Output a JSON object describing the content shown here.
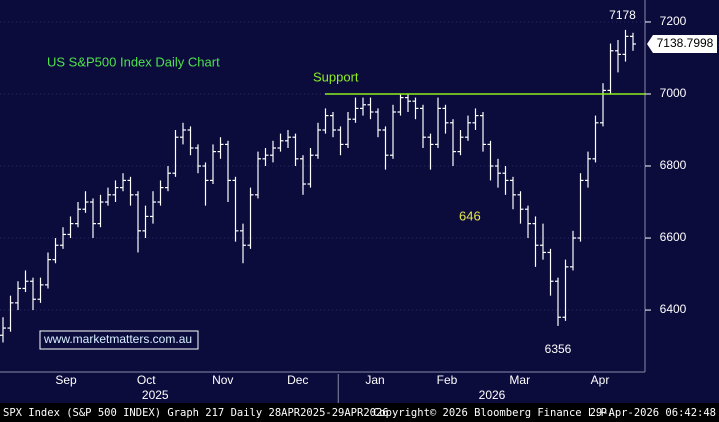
{
  "chart_data": {
    "type": "ohlc",
    "title": "US S&P500 Index Daily Chart",
    "url": "www.marketmatters.com.au",
    "color": "#ffffff",
    "support_level": 7000,
    "support_label": "Support",
    "support_color": "#8cf01e",
    "annotation": "646",
    "annotation_color": "#e6e64a",
    "ylim": [
      6228,
      7261
    ],
    "yticks": [
      6400,
      6600,
      6800,
      7000,
      7200
    ],
    "xlim": [
      -0.4,
      85.6
    ],
    "xticks": [
      {
        "value": 8.4,
        "label": "Sep"
      },
      {
        "value": 19.1,
        "label": "Oct"
      },
      {
        "value": 29.3,
        "label": "Nov"
      },
      {
        "value": 39.3,
        "label": "Dec"
      },
      {
        "value": 49.6,
        "label": "Jan"
      },
      {
        "value": 59.2,
        "label": "Feb"
      },
      {
        "value": 68.9,
        "label": "Mar"
      },
      {
        "value": 79.6,
        "label": "Apr"
      }
    ],
    "years": [
      {
        "value": 20.3,
        "label": "2025"
      },
      {
        "value": 65.2,
        "label": "2026"
      }
    ],
    "year_break": 44.7,
    "bars": [
      [
        6330,
        6380,
        6310,
        6350
      ],
      [
        6350,
        6440,
        6340,
        6420
      ],
      [
        6420,
        6480,
        6400,
        6460
      ],
      [
        6460,
        6510,
        6450,
        6480
      ],
      [
        6480,
        6490,
        6400,
        6430
      ],
      [
        6430,
        6490,
        6420,
        6470
      ],
      [
        6470,
        6560,
        6460,
        6540
      ],
      [
        6540,
        6600,
        6530,
        6580
      ],
      [
        6580,
        6630,
        6570,
        6610
      ],
      [
        6610,
        6660,
        6600,
        6640
      ],
      [
        6640,
        6700,
        6630,
        6680
      ],
      [
        6680,
        6730,
        6670,
        6700
      ],
      [
        6700,
        6710,
        6600,
        6640
      ],
      [
        6640,
        6720,
        6630,
        6700
      ],
      [
        6700,
        6740,
        6690,
        6720
      ],
      [
        6720,
        6760,
        6700,
        6740
      ],
      [
        6740,
        6780,
        6730,
        6760
      ],
      [
        6760,
        6770,
        6690,
        6720
      ],
      [
        6720,
        6730,
        6560,
        6620
      ],
      [
        6620,
        6690,
        6600,
        6660
      ],
      [
        6660,
        6730,
        6640,
        6700
      ],
      [
        6700,
        6760,
        6690,
        6740
      ],
      [
        6740,
        6800,
        6730,
        6780
      ],
      [
        6780,
        6900,
        6770,
        6880
      ],
      [
        6880,
        6920,
        6860,
        6900
      ],
      [
        6900,
        6910,
        6830,
        6850
      ],
      [
        6850,
        6860,
        6780,
        6800
      ],
      [
        6800,
        6810,
        6690,
        6760
      ],
      [
        6760,
        6860,
        6750,
        6840
      ],
      [
        6840,
        6880,
        6820,
        6860
      ],
      [
        6860,
        6870,
        6700,
        6760
      ],
      [
        6760,
        6770,
        6590,
        6620
      ],
      [
        6620,
        6640,
        6530,
        6580
      ],
      [
        6580,
        6740,
        6570,
        6720
      ],
      [
        6720,
        6840,
        6710,
        6820
      ],
      [
        6820,
        6850,
        6800,
        6830
      ],
      [
        6830,
        6870,
        6810,
        6850
      ],
      [
        6850,
        6890,
        6840,
        6870
      ],
      [
        6870,
        6900,
        6850,
        6880
      ],
      [
        6880,
        6890,
        6800,
        6820
      ],
      [
        6820,
        6830,
        6720,
        6750
      ],
      [
        6750,
        6850,
        6740,
        6830
      ],
      [
        6830,
        6920,
        6820,
        6900
      ],
      [
        6900,
        6960,
        6890,
        6940
      ],
      [
        6940,
        6950,
        6880,
        6900
      ],
      [
        6900,
        6910,
        6830,
        6860
      ],
      [
        6860,
        6950,
        6850,
        6930
      ],
      [
        6930,
        6990,
        6920,
        6960
      ],
      [
        6960,
        6990,
        6940,
        6970
      ],
      [
        6970,
        6990,
        6930,
        6950
      ],
      [
        6950,
        6960,
        6880,
        6900
      ],
      [
        6900,
        6910,
        6790,
        6830
      ],
      [
        6830,
        6970,
        6820,
        6950
      ],
      [
        6950,
        7000,
        6940,
        6990
      ],
      [
        6990,
        7000,
        6950,
        6980
      ],
      [
        6980,
        6990,
        6930,
        6960
      ],
      [
        6960,
        6970,
        6850,
        6880
      ],
      [
        6880,
        6890,
        6790,
        6860
      ],
      [
        6860,
        6990,
        6850,
        6960
      ],
      [
        6960,
        6970,
        6890,
        6920
      ],
      [
        6920,
        6930,
        6800,
        6840
      ],
      [
        6840,
        6900,
        6830,
        6880
      ],
      [
        6880,
        6940,
        6870,
        6920
      ],
      [
        6920,
        6960,
        6900,
        6940
      ],
      [
        6940,
        6950,
        6840,
        6860
      ],
      [
        6860,
        6870,
        6760,
        6800
      ],
      [
        6800,
        6820,
        6740,
        6780
      ],
      [
        6780,
        6800,
        6720,
        6760
      ],
      [
        6760,
        6770,
        6680,
        6720
      ],
      [
        6720,
        6730,
        6640,
        6680
      ],
      [
        6680,
        6690,
        6600,
        6640
      ],
      [
        6640,
        6660,
        6520,
        6580
      ],
      [
        6580,
        6640,
        6540,
        6560
      ],
      [
        6560,
        6570,
        6440,
        6480
      ],
      [
        6480,
        6490,
        6356,
        6380
      ],
      [
        6380,
        6540,
        6370,
        6520
      ],
      [
        6520,
        6620,
        6510,
        6600
      ],
      [
        6600,
        6780,
        6590,
        6760
      ],
      [
        6760,
        6840,
        6740,
        6820
      ],
      [
        6820,
        6940,
        6810,
        6920
      ],
      [
        6920,
        7030,
        6910,
        7010
      ],
      [
        7010,
        7140,
        7000,
        7120
      ],
      [
        7120,
        7150,
        7060,
        7110
      ],
      [
        7110,
        7178,
        7090,
        7160
      ],
      [
        7160,
        7170,
        7120,
        7138.7998
      ]
    ],
    "footer": [
      "SPX Index (S&P 500 INDEX) Graph 217 Daily 28APR2025-29APR2026",
      "Copyright© 2026 Bloomberg Finance L.P.",
      "29-Apr-2026 06:42:48"
    ]
  }
}
